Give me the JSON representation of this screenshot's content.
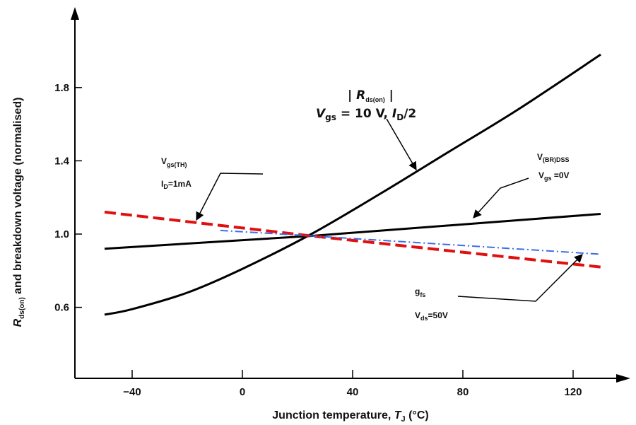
{
  "chart_data": {
    "type": "line",
    "title": "",
    "xlabel": "Junction temperature, T_J (°C)",
    "ylabel": "R_ds(on) and breakdown voltage (normalised)",
    "xlim": [
      -50,
      135
    ],
    "ylim": [
      0.2,
      2.05
    ],
    "x_ticks": [
      -40,
      0,
      40,
      80,
      120
    ],
    "x_tick_labels": [
      "−40",
      "0",
      "40",
      "80",
      "120"
    ],
    "y_ticks": [
      0.6,
      1.0,
      1.4,
      1.8
    ],
    "y_tick_labels": [
      "0.6",
      "1.0",
      "1.4",
      "1.8"
    ],
    "grid": false,
    "legend": "none",
    "series": [
      {
        "name": "|R_ds(on)| V_gs = 10 V, I_D/2",
        "style": "solid",
        "color": "#000000",
        "x": [
          -50,
          -40,
          -20,
          0,
          25,
          50,
          75,
          100,
          130
        ],
        "y": [
          0.56,
          0.59,
          0.68,
          0.81,
          1.0,
          1.22,
          1.45,
          1.68,
          1.98
        ]
      },
      {
        "name": "V(BR)DSS V_gs = 0V",
        "style": "solid",
        "color": "#000000",
        "x": [
          -50,
          25,
          130
        ],
        "y": [
          0.92,
          0.99,
          1.11
        ]
      },
      {
        "name": "V_gs(TH) I_D = 1mA",
        "style": "dashed",
        "color": "#e01010",
        "x": [
          -50,
          25,
          130
        ],
        "y": [
          1.12,
          0.99,
          0.82
        ]
      },
      {
        "name": "g_fs V_ds = 50V",
        "style": "dashdot",
        "color": "#3a6ee8",
        "x": [
          -8,
          25,
          130
        ],
        "y": [
          1.02,
          0.99,
          0.89
        ]
      }
    ],
    "annotations": {
      "rds": {
        "pre": "| ",
        "main": "R",
        "sub": "ds(on)",
        "post": " |",
        "line2_v": "V",
        "line2_sub": "gs",
        "line2_rest": " = 10 V, ",
        "line2_i": "I",
        "line2_isub": "D",
        "line2_end": "/2"
      },
      "vgsth": {
        "v": "V",
        "vsub": "gs(TH)",
        "i": "I",
        "isub": "D",
        "irest": "=1mA"
      },
      "vbr": {
        "v": "V",
        "vsub": "(BR)DSS",
        "g": "V",
        "gsub": "gs",
        "grest": " =0V"
      },
      "gfs": {
        "g": "g",
        "gsub": "fs",
        "v": "V",
        "vsub": "ds",
        "vrest": "=50V"
      }
    },
    "axis_title_parts": {
      "x_pre": "Junction temperature, ",
      "x_T": "T",
      "x_Tsub": "J",
      "x_post": " (°C)",
      "y_R": "R",
      "y_Rsub": "ds(on)",
      "y_post": " and breakdown voltage (normalised)"
    }
  }
}
